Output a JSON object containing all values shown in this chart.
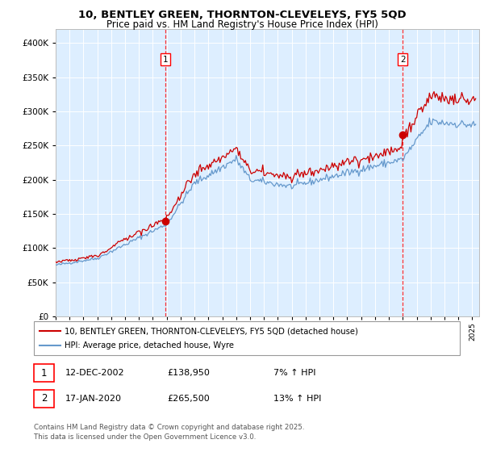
{
  "title_line1": "10, BENTLEY GREEN, THORNTON-CLEVELEYS, FY5 5QD",
  "title_line2": "Price paid vs. HM Land Registry's House Price Index (HPI)",
  "legend_line1": "10, BENTLEY GREEN, THORNTON-CLEVELEYS, FY5 5QD (detached house)",
  "legend_line2": "HPI: Average price, detached house, Wyre",
  "annotation1_date": "12-DEC-2002",
  "annotation1_price": "£138,950",
  "annotation1_hpi": "7% ↑ HPI",
  "annotation2_date": "17-JAN-2020",
  "annotation2_price": "£265,500",
  "annotation2_hpi": "13% ↑ HPI",
  "footer": "Contains HM Land Registry data © Crown copyright and database right 2025.\nThis data is licensed under the Open Government Licence v3.0.",
  "sale1_date_num": 2002.95,
  "sale1_price": 138950,
  "sale2_date_num": 2020.04,
  "sale2_price": 265500,
  "hpi_color": "#6699cc",
  "price_color": "#cc0000",
  "bg_color": "#ddeeff",
  "grid_color": "#ffffff",
  "ylim": [
    0,
    420000
  ],
  "xlim_start": 1995.0,
  "xlim_end": 2025.5
}
